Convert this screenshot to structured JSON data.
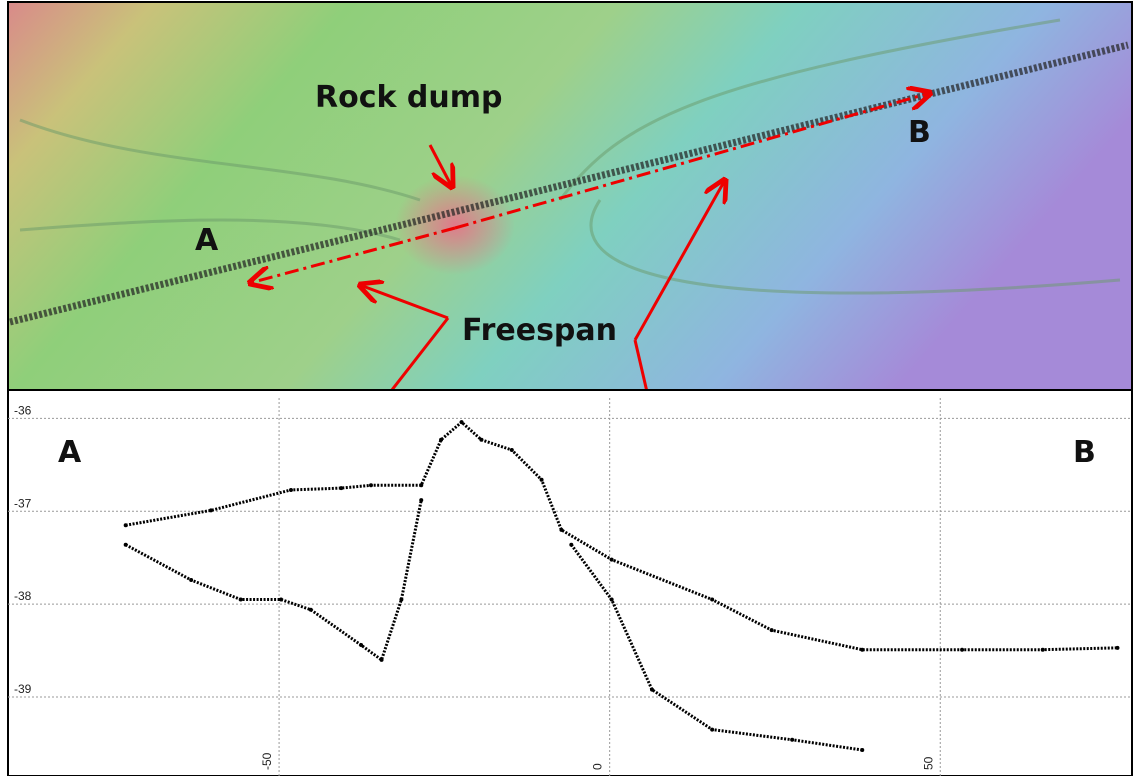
{
  "map": {
    "labels": [
      "Rock dump",
      "A",
      "B",
      "Freespan"
    ]
  },
  "chart_data": {
    "type": "scatter",
    "labels": [
      "A",
      "B"
    ],
    "xlim": [
      -91,
      79
    ],
    "xticks": [
      -50,
      0,
      50
    ],
    "ylim": [
      -39.85,
      -35.78
    ],
    "yticks": [
      -36,
      -37,
      -38,
      -39
    ],
    "grid": true,
    "series": [
      {
        "color": "#000000",
        "x": [
          -73.2,
          -60.3,
          -48.2,
          -40.6,
          -36.1,
          -28.5,
          -25.5,
          -22.4,
          -19.4,
          -14.8,
          -10.3,
          -7.3,
          0.3,
          15.5,
          24.5,
          38.2,
          53.3,
          65.5,
          76.8
        ],
        "values": [
          -37.15,
          -36.99,
          -36.77,
          -36.75,
          -36.72,
          -36.72,
          -36.23,
          -36.04,
          -36.23,
          -36.34,
          -36.66,
          -37.2,
          -37.52,
          -37.95,
          -38.28,
          -38.49,
          -38.49,
          -38.49,
          -38.47
        ]
      },
      {
        "color": "#000000",
        "x": [
          -73.2,
          -63.3,
          -55.8,
          -49.7,
          -45.2,
          -37.6,
          -34.5,
          -31.5,
          -28.5
        ],
        "values": [
          -37.36,
          -37.74,
          -37.95,
          -37.95,
          -38.06,
          -38.44,
          -38.6,
          -37.95,
          -36.88
        ]
      },
      {
        "color": "#000000",
        "x": [
          -5.8,
          0.3,
          6.4,
          15.5,
          27.6,
          38.2
        ],
        "values": [
          -37.36,
          -37.95,
          -38.92,
          -39.35,
          -39.46,
          -39.57
        ]
      }
    ]
  }
}
